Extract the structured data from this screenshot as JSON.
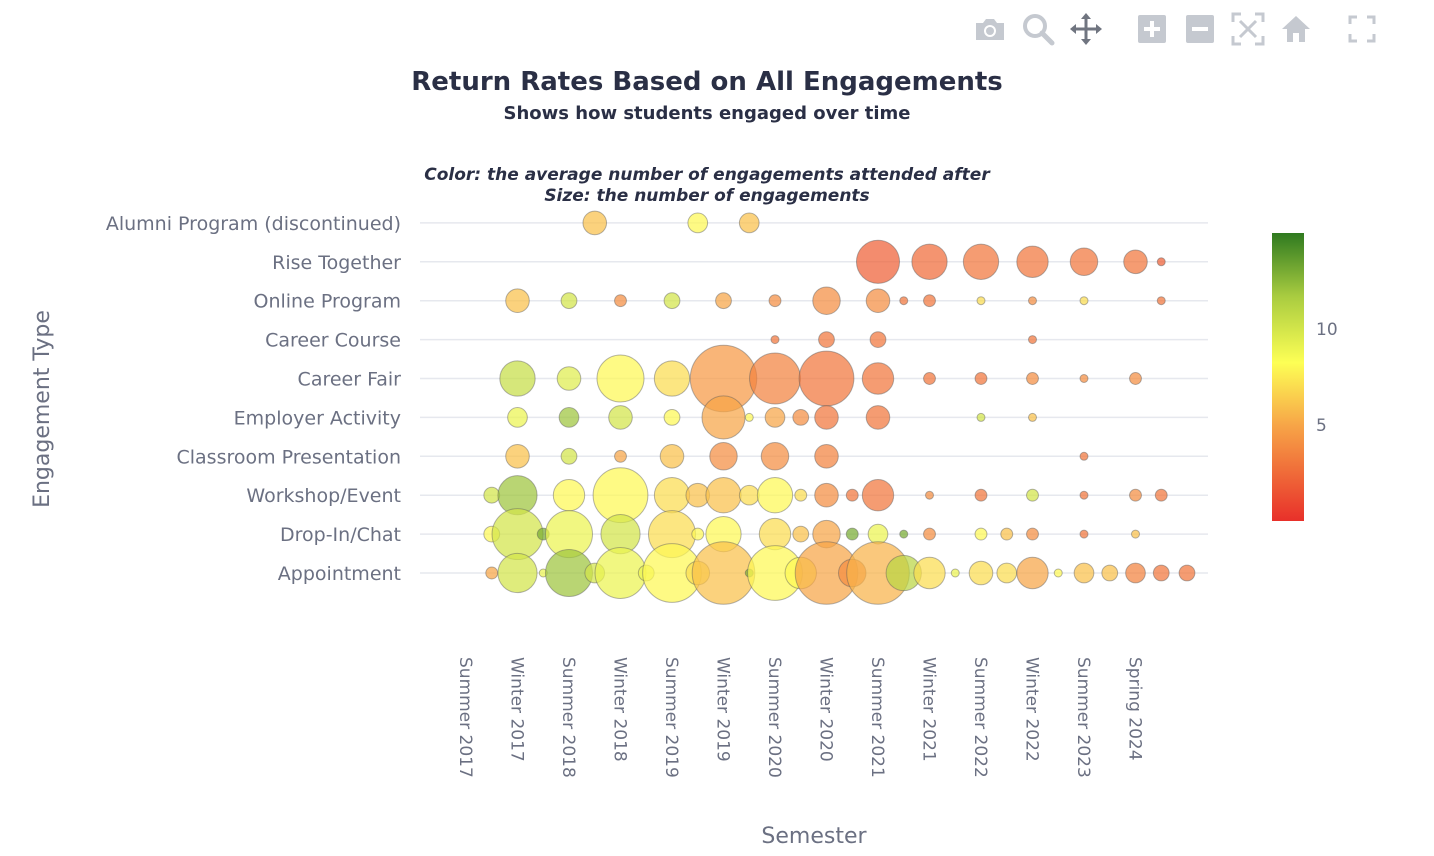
{
  "toolbar": [
    {
      "name": "camera-icon",
      "label": "Download plot as a png"
    },
    {
      "name": "zoom-icon",
      "label": "Zoom"
    },
    {
      "name": "pan-icon",
      "label": "Pan"
    },
    {
      "name": "zoom-in-icon",
      "label": "Zoom in"
    },
    {
      "name": "zoom-out-icon",
      "label": "Zoom out"
    },
    {
      "name": "autoscale-icon",
      "label": "Autoscale"
    },
    {
      "name": "home-icon",
      "label": "Reset axes"
    },
    {
      "name": "fullscreen-icon",
      "label": "Toggle Spike Lines"
    }
  ],
  "chart_data": {
    "type": "scatter",
    "title": "Return Rates Based on All Engagements",
    "subtitle": "Shows how students engaged over time",
    "annotation_lines": [
      "Color: the average number of engagements attended after",
      "Size: the number of engagements"
    ],
    "xlabel": "Semester",
    "ylabel": "Engagement Type",
    "x_tick_labels": [
      "Summer 2017",
      "Winter 2017",
      "Summer 2018",
      "Winter 2018",
      "Summer 2019",
      "Winter 2019",
      "Summer 2020",
      "Winter 2020",
      "Summer 2021",
      "Winter 2021",
      "Summer 2022",
      "Winter 2022",
      "Summer 2023",
      "Spring 2024"
    ],
    "y_categories": [
      "Appointment",
      "Drop-In/Chat",
      "Workshop/Event",
      "Classroom Presentation",
      "Employer Activity",
      "Career Fair",
      "Career Course",
      "Online Program",
      "Rise Together",
      "Alumni Program (discontinued)"
    ],
    "colorscale": [
      "#e8302a",
      "#fdff55",
      "#2f7a20"
    ],
    "color_range": [
      0,
      15
    ],
    "colorbar_ticks": [
      5,
      10
    ],
    "grid": true,
    "legend": "colorbar-right",
    "series": [
      {
        "y": "Alumni Program (discontinued)",
        "points": [
          [
            2.5,
            5,
            6.0
          ],
          [
            4.5,
            4,
            8.0
          ],
          [
            5.5,
            4,
            6.0
          ]
        ]
      },
      {
        "y": "Rise Together",
        "points": [
          [
            8.0,
            10,
            2.0
          ],
          [
            9.0,
            8,
            2.5
          ],
          [
            10.0,
            8,
            3.0
          ],
          [
            11.0,
            7,
            3.0
          ],
          [
            12.0,
            6,
            3.0
          ],
          [
            13.0,
            5,
            3.0
          ],
          [
            13.5,
            1,
            2.0
          ]
        ]
      },
      {
        "y": "Online Program",
        "points": [
          [
            1.0,
            5,
            6.0
          ],
          [
            2.0,
            3,
            10.0
          ],
          [
            3.0,
            2,
            4.0
          ],
          [
            4.0,
            3,
            10.0
          ],
          [
            5.0,
            3,
            5.0
          ],
          [
            6.0,
            2,
            4.0
          ],
          [
            7.0,
            6,
            4.0
          ],
          [
            8.0,
            5,
            4.0
          ],
          [
            8.5,
            1,
            3.0
          ],
          [
            9.0,
            2,
            3.0
          ],
          [
            10.0,
            1,
            7.0
          ],
          [
            11.0,
            1,
            4.0
          ],
          [
            12.0,
            1,
            7.0
          ],
          [
            13.5,
            1,
            3.0
          ]
        ]
      },
      {
        "y": "Career Course",
        "points": [
          [
            6.0,
            1,
            3.0
          ],
          [
            7.0,
            3,
            3.0
          ],
          [
            8.0,
            3,
            3.0
          ],
          [
            11.0,
            1,
            3.0
          ]
        ]
      },
      {
        "y": "Career Fair",
        "points": [
          [
            1.0,
            8,
            10.5
          ],
          [
            2.0,
            5,
            9.5
          ],
          [
            3.0,
            11,
            8.0
          ],
          [
            4.0,
            8,
            7.0
          ],
          [
            5.0,
            16,
            4.5
          ],
          [
            6.0,
            12,
            3.5
          ],
          [
            7.0,
            13,
            3.0
          ],
          [
            8.0,
            7,
            3.0
          ],
          [
            9.0,
            2,
            3.0
          ],
          [
            10.0,
            2,
            3.0
          ],
          [
            11.0,
            2,
            4.0
          ],
          [
            12.0,
            1,
            4.0
          ],
          [
            13.0,
            2,
            4.0
          ]
        ]
      },
      {
        "y": "Employer Activity",
        "points": [
          [
            1.0,
            4,
            9.0
          ],
          [
            2.0,
            4,
            12.0
          ],
          [
            3.0,
            5,
            10.0
          ],
          [
            4.0,
            3,
            8.0
          ],
          [
            5.0,
            10,
            5.0
          ],
          [
            5.5,
            1,
            8.0
          ],
          [
            6.0,
            4,
            5.0
          ],
          [
            6.5,
            3,
            4.0
          ],
          [
            7.0,
            5,
            3.0
          ],
          [
            8.0,
            5,
            3.0
          ],
          [
            10.0,
            1,
            10.0
          ],
          [
            11.0,
            1,
            6.0
          ]
        ]
      },
      {
        "y": "Classroom Presentation",
        "points": [
          [
            1.0,
            5,
            6.0
          ],
          [
            2.0,
            3,
            10.0
          ],
          [
            3.0,
            2,
            5.0
          ],
          [
            4.0,
            5,
            6.0
          ],
          [
            5.0,
            6,
            4.0
          ],
          [
            6.0,
            6,
            4.0
          ],
          [
            7.0,
            5,
            3.5
          ],
          [
            12.0,
            1,
            3.0
          ]
        ]
      },
      {
        "y": "Workshop/Event",
        "points": [
          [
            0.5,
            3,
            10.0
          ],
          [
            1.0,
            9,
            12.0
          ],
          [
            2.0,
            7,
            8.0
          ],
          [
            3.0,
            13,
            8.0
          ],
          [
            4.0,
            8,
            7.0
          ],
          [
            4.5,
            5,
            6.0
          ],
          [
            5.0,
            8,
            6.0
          ],
          [
            5.5,
            4,
            7.0
          ],
          [
            6.0,
            8,
            8.0
          ],
          [
            6.5,
            2,
            7.0
          ],
          [
            7.0,
            5,
            4.0
          ],
          [
            7.5,
            2,
            3.0
          ],
          [
            8.0,
            7,
            3.0
          ],
          [
            9.0,
            1,
            4.0
          ],
          [
            10.0,
            2,
            3.0
          ],
          [
            11.0,
            2,
            10.0
          ],
          [
            12.0,
            1,
            3.0
          ],
          [
            13.0,
            2,
            4.0
          ],
          [
            13.5,
            2,
            3.0
          ]
        ]
      },
      {
        "y": "Drop-In/Chat",
        "points": [
          [
            0.5,
            3,
            8.0
          ],
          [
            1.0,
            12,
            10.0
          ],
          [
            1.5,
            2,
            13.0
          ],
          [
            2.0,
            11,
            9.0
          ],
          [
            3.0,
            9,
            10.0
          ],
          [
            4.0,
            11,
            7.0
          ],
          [
            4.5,
            2,
            8.0
          ],
          [
            5.0,
            8,
            8.0
          ],
          [
            6.0,
            7,
            7.0
          ],
          [
            6.5,
            3,
            6.0
          ],
          [
            7.0,
            6,
            5.0
          ],
          [
            7.5,
            2,
            13.0
          ],
          [
            8.0,
            4,
            9.0
          ],
          [
            8.5,
            1,
            13.0
          ],
          [
            9.0,
            2,
            4.0
          ],
          [
            10.0,
            2,
            8.0
          ],
          [
            10.5,
            2,
            6.0
          ],
          [
            11.0,
            2,
            4.0
          ],
          [
            12.0,
            1,
            3.0
          ],
          [
            13.0,
            1,
            6.0
          ]
        ]
      },
      {
        "y": "Appointment",
        "points": [
          [
            0.5,
            2,
            5.0
          ],
          [
            1.0,
            9,
            10.0
          ],
          [
            1.5,
            1,
            9.0
          ],
          [
            2.0,
            11,
            12.0
          ],
          [
            2.5,
            4,
            10.0
          ],
          [
            3.0,
            12,
            9.0
          ],
          [
            3.5,
            3,
            9.0
          ],
          [
            4.0,
            14,
            8.0
          ],
          [
            4.5,
            5,
            7.0
          ],
          [
            5.0,
            15,
            6.0
          ],
          [
            5.5,
            1,
            13.0
          ],
          [
            6.0,
            13,
            8.0
          ],
          [
            6.5,
            7,
            8.0
          ],
          [
            7.0,
            15,
            5.0
          ],
          [
            7.5,
            6,
            4.0
          ],
          [
            8.0,
            15,
            5.5
          ],
          [
            8.5,
            8,
            11.0
          ],
          [
            9.0,
            7,
            7.0
          ],
          [
            9.5,
            1,
            9.0
          ],
          [
            10.0,
            5,
            7.0
          ],
          [
            10.5,
            4,
            7.0
          ],
          [
            11.0,
            7,
            5.0
          ],
          [
            11.5,
            1,
            8.0
          ],
          [
            12.0,
            4,
            6.0
          ],
          [
            12.5,
            3,
            6.0
          ],
          [
            13.0,
            4,
            3.5
          ],
          [
            13.5,
            3,
            3.0
          ],
          [
            14.0,
            3,
            3.0
          ]
        ]
      }
    ]
  }
}
